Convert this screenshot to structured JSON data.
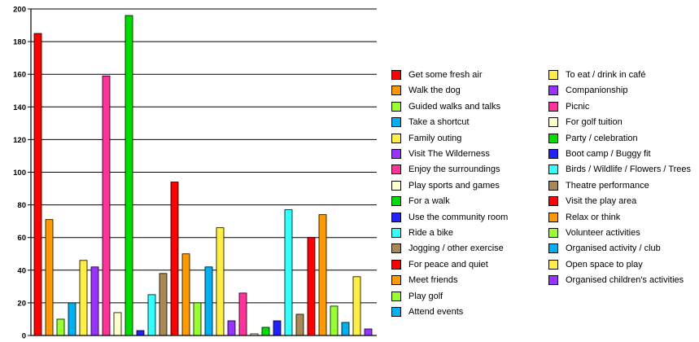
{
  "chart_data": {
    "type": "bar",
    "title": "",
    "xlabel": "",
    "ylabel": "",
    "ylim": [
      0,
      200
    ],
    "yticks": [
      0,
      20,
      40,
      60,
      80,
      100,
      120,
      140,
      160,
      180,
      200
    ],
    "grid": true,
    "legend_position": "right",
    "series": [
      {
        "name": "Get some fresh air",
        "value": 185,
        "color": "#ff0000"
      },
      {
        "name": "Walk the dog",
        "value": 71,
        "color": "#ff9900"
      },
      {
        "name": "Guided walks and talks",
        "value": 10,
        "color": "#99ff33"
      },
      {
        "name": "Take a shortcut",
        "value": 20,
        "color": "#00b0f0"
      },
      {
        "name": "Family outing",
        "value": 46,
        "color": "#ffee44"
      },
      {
        "name": "Visit The Wilderness",
        "value": 42,
        "color": "#9933ff"
      },
      {
        "name": "Enjoy the surroundings",
        "value": 159,
        "color": "#ff3399"
      },
      {
        "name": "Play sports and games",
        "value": 14,
        "color": "#ffffcc"
      },
      {
        "name": "For a walk",
        "value": 196,
        "color": "#00dd00"
      },
      {
        "name": "Use the community room",
        "value": 3,
        "color": "#2222ff"
      },
      {
        "name": "Ride a bike",
        "value": 25,
        "color": "#33ffff"
      },
      {
        "name": "Jogging / other exercise",
        "value": 38,
        "color": "#aa8855"
      },
      {
        "name": "For peace and quiet",
        "value": 94,
        "color": "#ff0000"
      },
      {
        "name": "Meet friends",
        "value": 50,
        "color": "#ff9900"
      },
      {
        "name": "Play golf",
        "value": 20,
        "color": "#99ff33"
      },
      {
        "name": "Attend events",
        "value": 42,
        "color": "#00b0f0"
      },
      {
        "name": "To eat / drink in café",
        "value": 66,
        "color": "#ffee44"
      },
      {
        "name": "Companionship",
        "value": 9,
        "color": "#9933ff"
      },
      {
        "name": "Picnic",
        "value": 26,
        "color": "#ff3399"
      },
      {
        "name": "For golf tuition",
        "value": 1,
        "color": "#ffffcc"
      },
      {
        "name": "Party / celebration",
        "value": 5,
        "color": "#00dd00"
      },
      {
        "name": "Boot camp / Buggy fit",
        "value": 9,
        "color": "#2222ff"
      },
      {
        "name": "Birds / Wildlife / Flowers / Trees",
        "value": 77,
        "color": "#33ffff"
      },
      {
        "name": "Theatre performance",
        "value": 13,
        "color": "#aa8855"
      },
      {
        "name": "Visit the play area",
        "value": 60,
        "color": "#ff0000"
      },
      {
        "name": "Relax or think",
        "value": 74,
        "color": "#ff9900"
      },
      {
        "name": "Volunteer activities",
        "value": 18,
        "color": "#99ff33"
      },
      {
        "name": "Organised activity / club",
        "value": 8,
        "color": "#00b0f0"
      },
      {
        "name": "Open space to play",
        "value": 36,
        "color": "#ffee44"
      },
      {
        "name": "Organised children's activities",
        "value": 4,
        "color": "#9933ff"
      }
    ]
  }
}
